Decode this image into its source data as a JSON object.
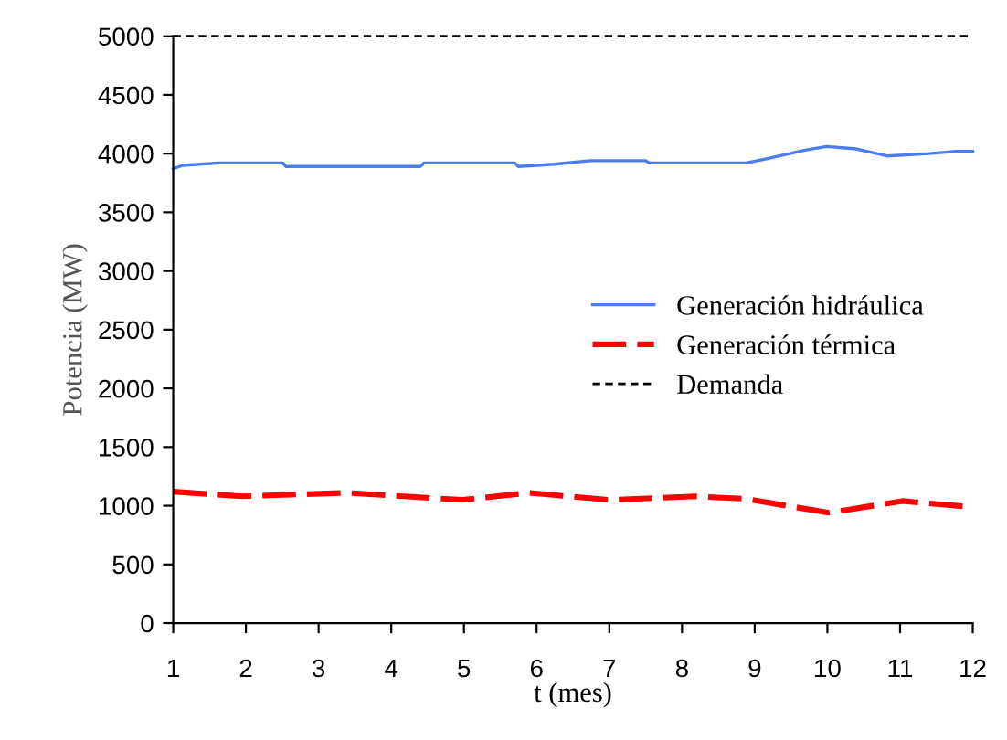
{
  "chart_data": {
    "type": "line",
    "xlabel": "t (mes)",
    "ylabel": "Potencia (MW)",
    "xlim": [
      1,
      12
    ],
    "xticks": [
      1,
      2,
      3,
      4,
      5,
      6,
      7,
      8,
      9,
      10,
      11,
      12
    ],
    "ylim": [
      0,
      5000
    ],
    "yticks": [
      0,
      500,
      1000,
      1500,
      2000,
      2500,
      3000,
      3500,
      4000,
      4500,
      5000
    ],
    "grid": false,
    "legend": "right",
    "series": [
      {
        "name": "Generación hidráulica",
        "color": "#4a7ef0",
        "line_style": "solid",
        "x": [
          1,
          1.13,
          1.63,
          2.51,
          2.55,
          4.4,
          4.45,
          5.7,
          5.75,
          6.24,
          6.74,
          7.5,
          7.55,
          8.88,
          9.19,
          9.69,
          9.99,
          10.4,
          10.82,
          11.4,
          11.78,
          12
        ],
        "values": [
          3870,
          3900,
          3920,
          3920,
          3890,
          3890,
          3920,
          3920,
          3890,
          3910,
          3940,
          3940,
          3920,
          3920,
          3960,
          4030,
          4060,
          4040,
          3980,
          4000,
          4020,
          4020
        ]
      },
      {
        "name": "Generación térmica",
        "color": "#ff0000",
        "line_style": "dashed",
        "x": [
          1,
          1.96,
          3.39,
          4.98,
          5.9,
          7.0,
          8.18,
          8.86,
          10.02,
          11.03,
          11.96
        ],
        "values": [
          1120,
          1080,
          1110,
          1050,
          1110,
          1050,
          1080,
          1060,
          940,
          1040,
          990
        ]
      },
      {
        "name": "Demanda",
        "color": "#000000",
        "line_style": "dotted",
        "x": [
          1,
          12
        ],
        "values": [
          5000,
          5000
        ]
      }
    ]
  }
}
